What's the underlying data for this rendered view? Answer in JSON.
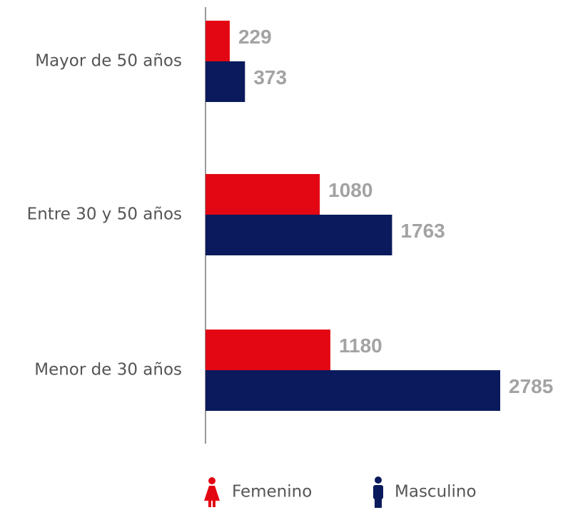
{
  "chart_data": {
    "type": "bar",
    "orientation": "horizontal",
    "categories": [
      "Mayor de 50 años",
      "Entre 30 y 50 años",
      "Menor de 30 años"
    ],
    "series": [
      {
        "name": "Femenino",
        "color": "#e30613",
        "values": [
          229,
          1080,
          1180
        ]
      },
      {
        "name": "Masculino",
        "color": "#0a1a5c",
        "values": [
          373,
          1763,
          2785
        ]
      }
    ]
  }
}
